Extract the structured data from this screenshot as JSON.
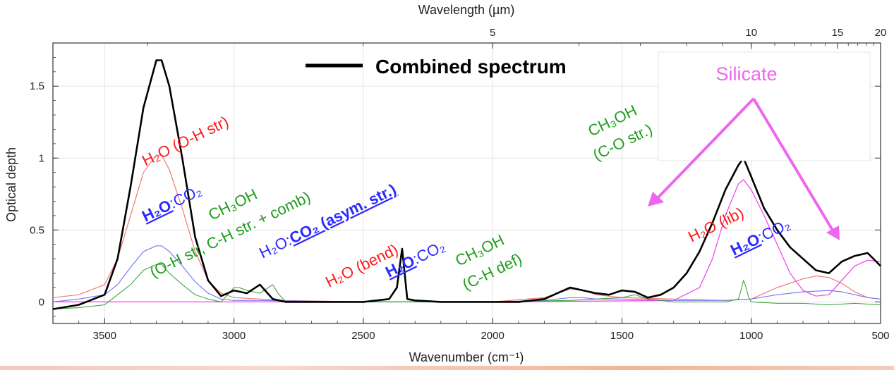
{
  "chart_data": {
    "type": "line",
    "xlabel": "Wavenumber (cm⁻¹)",
    "top_xlabel": "Wavelength (µm)",
    "ylabel": "Optical depth",
    "xlim": [
      3700,
      500
    ],
    "ylim": [
      -0.15,
      1.8
    ],
    "x_ticks": [
      3500,
      3000,
      2500,
      2000,
      1500,
      1000,
      500
    ],
    "x_tick_labels": [
      "3500",
      "3000",
      "2500",
      "2000",
      "1500",
      "1000",
      "500"
    ],
    "top_ticks_um": [
      5,
      10,
      15,
      20
    ],
    "top_tick_labels": [
      "5",
      "10",
      "15",
      "20"
    ],
    "y_ticks": [
      0,
      0.5,
      1,
      1.5
    ],
    "y_tick_labels": [
      "0",
      "0.5",
      "1",
      "1.5"
    ],
    "grid": true,
    "legend": {
      "label": "Combined spectrum",
      "position": "top-center"
    },
    "series": [
      {
        "color": "#000000",
        "x": [
          3700,
          3600,
          3500,
          3450,
          3400,
          3350,
          3300,
          3280,
          3250,
          3200,
          3150,
          3100,
          3050,
          3000,
          2950,
          2900,
          2850,
          2800,
          2700,
          2600,
          2500,
          2400,
          2370,
          2350,
          2330,
          2300,
          2200,
          2000,
          1900,
          1800,
          1750,
          1700,
          1650,
          1600,
          1550,
          1500,
          1450,
          1400,
          1350,
          1300,
          1250,
          1200,
          1150,
          1100,
          1050,
          1030,
          1000,
          950,
          900,
          850,
          800,
          750,
          700,
          650,
          600,
          550,
          500
        ],
        "y": [
          -0.05,
          -0.02,
          0.05,
          0.3,
          0.8,
          1.35,
          1.68,
          1.68,
          1.5,
          1.0,
          0.45,
          0.15,
          0.04,
          0.08,
          0.06,
          0.12,
          0.02,
          0.0,
          0.0,
          0.0,
          0.0,
          0.02,
          0.1,
          0.37,
          0.02,
          0.01,
          0.0,
          0.0,
          0.0,
          0.02,
          0.06,
          0.1,
          0.08,
          0.06,
          0.05,
          0.08,
          0.07,
          0.03,
          0.05,
          0.1,
          0.2,
          0.35,
          0.55,
          0.78,
          0.95,
          1.0,
          0.87,
          0.65,
          0.5,
          0.38,
          0.3,
          0.22,
          0.2,
          0.28,
          0.32,
          0.34,
          0.25
        ]
      },
      {
        "color": "#f07a78",
        "x": [
          3700,
          3600,
          3500,
          3450,
          3400,
          3350,
          3300,
          3280,
          3250,
          3200,
          3150,
          3100,
          3050,
          3000,
          2900,
          2800,
          2500,
          2000,
          1800,
          1700,
          1650,
          1600,
          1500,
          1300,
          1100,
          1000,
          900,
          800,
          750,
          700,
          650,
          600,
          550,
          500
        ],
        "y": [
          0.03,
          0.05,
          0.12,
          0.3,
          0.6,
          0.9,
          1.02,
          1.02,
          0.92,
          0.65,
          0.35,
          0.15,
          0.06,
          0.03,
          0.02,
          0.01,
          0.0,
          0.0,
          0.03,
          0.09,
          0.08,
          0.05,
          0.03,
          0.02,
          0.01,
          0.02,
          0.1,
          0.16,
          0.18,
          0.17,
          0.13,
          0.07,
          0.03,
          0.02
        ]
      },
      {
        "color": "#7b7bf2",
        "x": [
          3700,
          3600,
          3500,
          3450,
          3400,
          3350,
          3300,
          3280,
          3250,
          3200,
          3150,
          3100,
          3050,
          3000,
          2900,
          2500,
          2000,
          1800,
          1700,
          1650,
          1600,
          1500,
          1300,
          1100,
          1000,
          900,
          800,
          700,
          650,
          600,
          550,
          500
        ],
        "y": [
          0.0,
          0.02,
          0.05,
          0.12,
          0.24,
          0.35,
          0.39,
          0.39,
          0.35,
          0.25,
          0.14,
          0.06,
          0.02,
          0.01,
          0.01,
          0.0,
          0.0,
          0.01,
          0.03,
          0.03,
          0.02,
          0.02,
          0.01,
          0.01,
          0.02,
          0.05,
          0.07,
          0.08,
          0.07,
          0.05,
          0.03,
          0.02
        ]
      },
      {
        "color": "#2ea12e",
        "x": [
          3700,
          3600,
          3500,
          3450,
          3400,
          3350,
          3300,
          3280,
          3250,
          3200,
          3150,
          3100,
          3050,
          3000,
          2980,
          2950,
          2900,
          2850,
          2830,
          2800,
          2700,
          2500,
          2000,
          1700,
          1600,
          1500,
          1450,
          1400,
          1300,
          1100,
          1050,
          1040,
          1030,
          1020,
          1010,
          1000,
          900,
          800,
          700,
          600,
          500
        ],
        "y": [
          -0.05,
          -0.04,
          -0.02,
          0.05,
          0.12,
          0.22,
          0.26,
          0.26,
          0.2,
          0.12,
          0.05,
          0.02,
          0.0,
          0.1,
          0.1,
          0.08,
          0.06,
          0.12,
          0.06,
          0.0,
          0.0,
          0.0,
          0.0,
          0.01,
          0.02,
          0.03,
          0.05,
          0.02,
          0.0,
          0.0,
          0.02,
          0.08,
          0.15,
          0.1,
          0.03,
          0.0,
          -0.01,
          -0.01,
          -0.02,
          -0.01,
          -0.02
        ]
      },
      {
        "color": "#ef3ef0",
        "x": [
          3700,
          3000,
          2000,
          1300,
          1200,
          1150,
          1100,
          1050,
          1030,
          1000,
          950,
          900,
          850,
          800,
          750,
          700,
          650,
          600,
          550,
          500
        ],
        "y": [
          0.0,
          0.0,
          0.0,
          0.01,
          0.1,
          0.3,
          0.6,
          0.82,
          0.85,
          0.78,
          0.6,
          0.4,
          0.2,
          0.08,
          0.04,
          0.05,
          0.15,
          0.25,
          0.29,
          0.28
        ]
      }
    ],
    "annotations": [
      {
        "text": "H₂O (O-H str)",
        "color": "#ff1a1a"
      },
      {
        "text_bold": "H₂O",
        "text_rest": ":CO₂",
        "color": "#2a2aff"
      },
      {
        "text": "CH₃OH",
        "color": "#1e9e1e"
      },
      {
        "text": "(O-H str, C-H str. + comb)",
        "color": "#1e9e1e"
      },
      {
        "text_prefix": "H₂O:",
        "text_bold": "CO₂ (asym. str.)",
        "color": "#2a2aff"
      },
      {
        "text": "H₂O (bend)",
        "color": "#ff1a1a"
      },
      {
        "text_bold": "H₂O",
        "text_rest": ":CO₂",
        "color": "#2a2aff"
      },
      {
        "text": "CH₃OH",
        "color": "#1e9e1e"
      },
      {
        "text": "(C-H def)",
        "color": "#1e9e1e"
      },
      {
        "text": "CH₃OH",
        "color": "#1e9e1e"
      },
      {
        "text": "(C-O str.)",
        "color": "#1e9e1e"
      },
      {
        "text": "H₂O (lib)",
        "color": "#ff1a1a"
      },
      {
        "text_bold": "H₂O",
        "text_rest": ":CO₂",
        "color": "#2a2aff"
      },
      {
        "text": "Silicate",
        "color": "#ee66ee"
      }
    ]
  }
}
